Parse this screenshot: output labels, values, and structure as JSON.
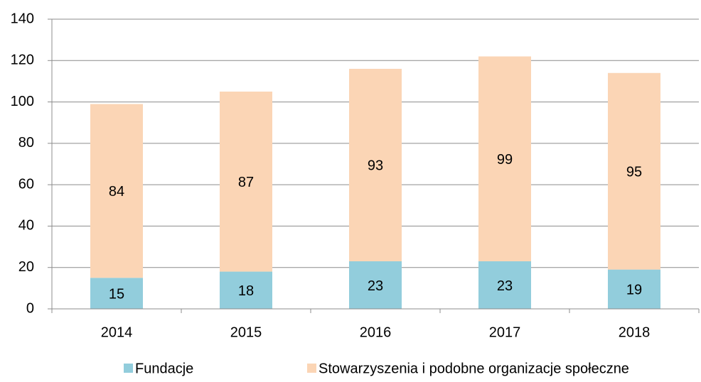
{
  "chart_data": {
    "type": "stacked_bar",
    "categories": [
      "2014",
      "2015",
      "2016",
      "2017",
      "2018"
    ],
    "series": [
      {
        "name": "Fundacje",
        "color": "#92cddc",
        "values": [
          15,
          18,
          23,
          23,
          19
        ]
      },
      {
        "name": "Stowarzyszenia i podobne organizacje społeczne",
        "color": "#fbd5b5",
        "values": [
          84,
          87,
          93,
          99,
          95
        ]
      }
    ],
    "ylim": [
      0,
      140
    ],
    "yticks": [
      0,
      20,
      40,
      60,
      80,
      100,
      120,
      140
    ],
    "grid": true,
    "legend": "bottom"
  }
}
